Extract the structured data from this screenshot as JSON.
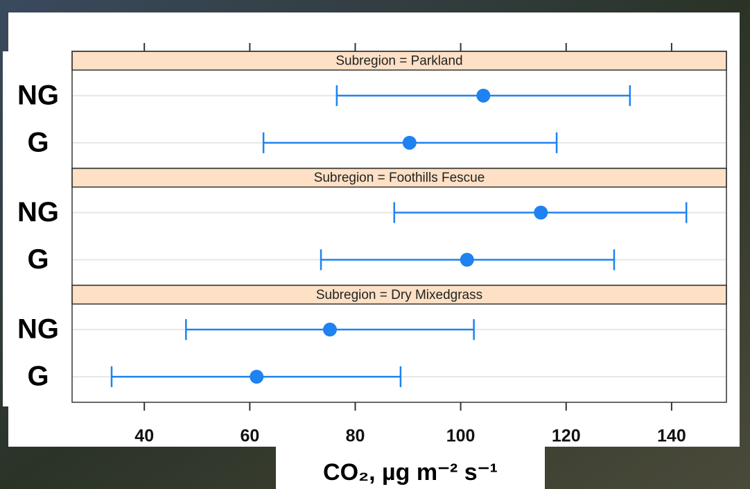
{
  "chart_data": {
    "type": "dotplot",
    "xlabel": "CO₂, µg m⁻² s⁻¹",
    "color": "#1e82f0",
    "xlim": [
      26.3,
      150.4
    ],
    "xticks": [
      40,
      60,
      80,
      100,
      120,
      140
    ],
    "panels": [
      {
        "title": "Subregion = Parkland",
        "categories": [
          "NG",
          "G"
        ],
        "values": [
          104.3,
          90.3
        ],
        "lower": [
          76.5,
          62.6
        ],
        "upper": [
          132.1,
          118.2
        ]
      },
      {
        "title": "Subregion = Foothills Fescue",
        "categories": [
          "NG",
          "G"
        ],
        "values": [
          115.2,
          101.2
        ],
        "lower": [
          87.4,
          73.5
        ],
        "upper": [
          142.8,
          129.1
        ]
      },
      {
        "title": "Subregion = Dry Mixedgrass",
        "categories": [
          "NG",
          "G"
        ],
        "values": [
          75.2,
          61.3
        ],
        "lower": [
          47.9,
          33.8
        ],
        "upper": [
          102.5,
          88.6
        ]
      }
    ]
  }
}
